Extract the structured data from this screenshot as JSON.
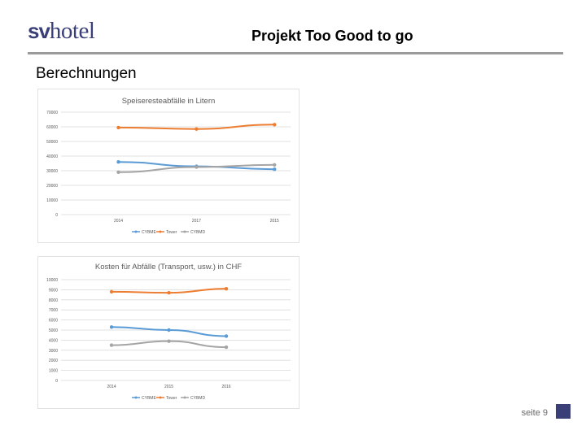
{
  "header": {
    "logo_sv": "sv",
    "logo_hotel": "hotel",
    "title": "Projekt Too Good to go"
  },
  "section_heading": "Berechnungen",
  "footer": {
    "page_label": "seite 9"
  },
  "colors": {
    "brand": "#3a3f78",
    "rule": "#9b9b9b",
    "series_cybme": "#5b9bd5",
    "series_tower": "#ed7d31",
    "series_cybmd": "#a5a5a5"
  },
  "chart_data": [
    {
      "type": "line",
      "title": "Speiseresteabfälle in Litern",
      "xlabel": "",
      "ylabel": "",
      "x": [
        "2014",
        "2017",
        "2015"
      ],
      "yticks": [
        "0",
        "10000",
        "20000",
        "30000",
        "40000",
        "50000",
        "60000",
        "70000"
      ],
      "ylim": [
        0,
        70000
      ],
      "grid": true,
      "legend_position": "bottom",
      "series": [
        {
          "name": "CYBME",
          "color": "#5b9bd5",
          "values": [
            36000,
            33000,
            31000
          ]
        },
        {
          "name": "Tower",
          "color": "#ed7d31",
          "values": [
            59500,
            58500,
            61500
          ]
        },
        {
          "name": "CYBMD",
          "color": "#a5a5a5",
          "values": [
            29000,
            32500,
            34000
          ]
        }
      ]
    },
    {
      "type": "line",
      "title": "Kosten für Abfälle (Transport, usw.) in CHF",
      "xlabel": "",
      "ylabel": "",
      "x": [
        "2014",
        "2015",
        "2016"
      ],
      "yticks": [
        "0",
        "1000",
        "2000",
        "3000",
        "4000",
        "5000",
        "6000",
        "7000",
        "8000",
        "9000",
        "10000"
      ],
      "ylim": [
        0,
        10000
      ],
      "grid": true,
      "legend_position": "bottom",
      "series": [
        {
          "name": "CYBME",
          "color": "#5b9bd5",
          "values": [
            5300,
            5000,
            4400
          ]
        },
        {
          "name": "Tower",
          "color": "#ed7d31",
          "values": [
            8800,
            8700,
            9100
          ]
        },
        {
          "name": "CYBMD",
          "color": "#a5a5a5",
          "values": [
            3500,
            3900,
            3300
          ]
        }
      ]
    }
  ]
}
